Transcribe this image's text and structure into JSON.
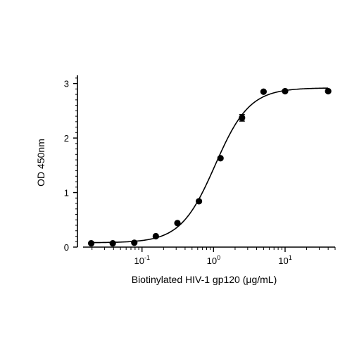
{
  "chart_data": {
    "type": "scatter",
    "title": "",
    "xlabel": "Biotinylated HIV-1 gp120 (μg/mL)",
    "ylabel": "OD 450nm",
    "x_scale": "log10",
    "xlim": [
      0.015,
      50
    ],
    "ylim": [
      0,
      3.15
    ],
    "y_ticks": [
      0,
      1,
      2,
      3
    ],
    "y_tick_labels": [
      "0",
      "1",
      "2",
      "3"
    ],
    "x_major_ticks": [
      0.1,
      1,
      10
    ],
    "x_tick_labels": [
      {
        "base": "10",
        "exp": "-1"
      },
      {
        "base": "10",
        "exp": "0"
      },
      {
        "base": "10",
        "exp": "1"
      }
    ],
    "grid": false,
    "legend": "none",
    "marker_color": "#000000",
    "line_color": "#000000",
    "series": [
      {
        "x": [
          0.0195,
          0.039,
          0.078,
          0.156,
          0.3125,
          0.625,
          1.25,
          2.5,
          5,
          10,
          40
        ],
        "y": [
          0.07,
          0.07,
          0.08,
          0.2,
          0.44,
          0.84,
          1.63,
          2.37,
          2.85,
          2.86,
          2.86
        ],
        "error": [
          0,
          0,
          0,
          0,
          0,
          0,
          0,
          0.06,
          0,
          0,
          0
        ]
      }
    ],
    "fit_curve": {
      "model": "4PL",
      "bottom": 0.08,
      "top": 2.92,
      "ec50": 1.05,
      "hill": 1.8
    }
  }
}
